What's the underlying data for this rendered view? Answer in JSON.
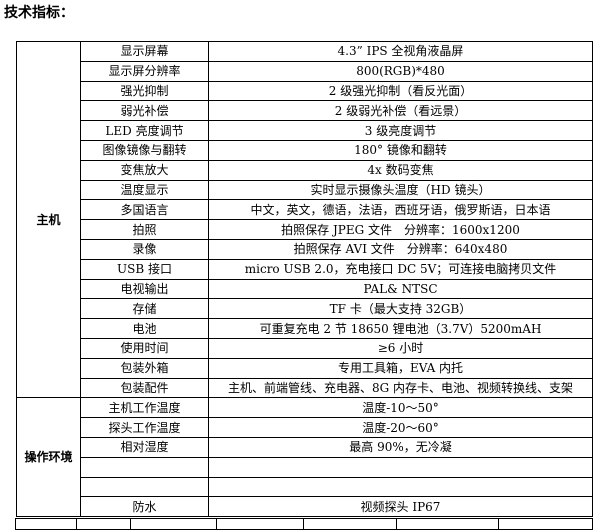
{
  "heading": "技术指标：",
  "groups": [
    {
      "label": "主机",
      "rows": [
        {
          "name": "显示屏幕",
          "value": "4.3” IPS 全视角液晶屏"
        },
        {
          "name": "显示屏分辨率",
          "value": "800(RGB)*480"
        },
        {
          "name": "强光抑制",
          "value": "2 级强光抑制（看反光面）"
        },
        {
          "name": "弱光补偿",
          "value": "2 级弱光补偿（看远景）"
        },
        {
          "name": "LED 亮度调节",
          "value": "3 级亮度调节"
        },
        {
          "name": "图像镜像与翻转",
          "value": "180° 镜像和翻转"
        },
        {
          "name": "变焦放大",
          "value": "4x 数码变焦"
        },
        {
          "name": "温度显示",
          "value": "实时显示摄像头温度（HD 镜头）"
        },
        {
          "name": "多国语言",
          "value": "中文，英文，德语，法语，西班牙语，俄罗斯语，日本语"
        },
        {
          "name": "拍照",
          "value": "拍照保存 JPEG 文件　分辨率：1600x1200"
        },
        {
          "name": "录像",
          "value": "拍照保存 AVI 文件　分辨率：640x480"
        },
        {
          "name": "USB 接口",
          "value": "micro USB 2.0，充电接口 DC 5V；可连接电脑拷贝文件"
        },
        {
          "name": "电视输出",
          "value": "PAL& NTSC"
        },
        {
          "name": "存储",
          "value": "TF 卡（最大支持 32GB）"
        },
        {
          "name": "电池",
          "value": "可重复充电 2 节 18650 锂电池（3.7V）5200mAH"
        },
        {
          "name": "使用时间",
          "value": "≥6 小时"
        },
        {
          "name": "包装外箱",
          "value": "专用工具箱，EVA 内托"
        },
        {
          "name": "包装配件",
          "value": "主机、前端管线、充电器、8G 内存卡、电池、视频转换线、支架"
        }
      ]
    },
    {
      "label": "操作环境",
      "rows": [
        {
          "name": "主机工作温度",
          "value": "温度-10～50°"
        },
        {
          "name": "探头工作温度",
          "value": "温度-20～60°"
        },
        {
          "name": "相对湿度",
          "value": "最高 90%，无冷凝"
        },
        {
          "name": "",
          "value": ""
        },
        {
          "name": "",
          "value": ""
        },
        {
          "name": "防水",
          "value": "视频探头 IP67"
        }
      ]
    }
  ]
}
